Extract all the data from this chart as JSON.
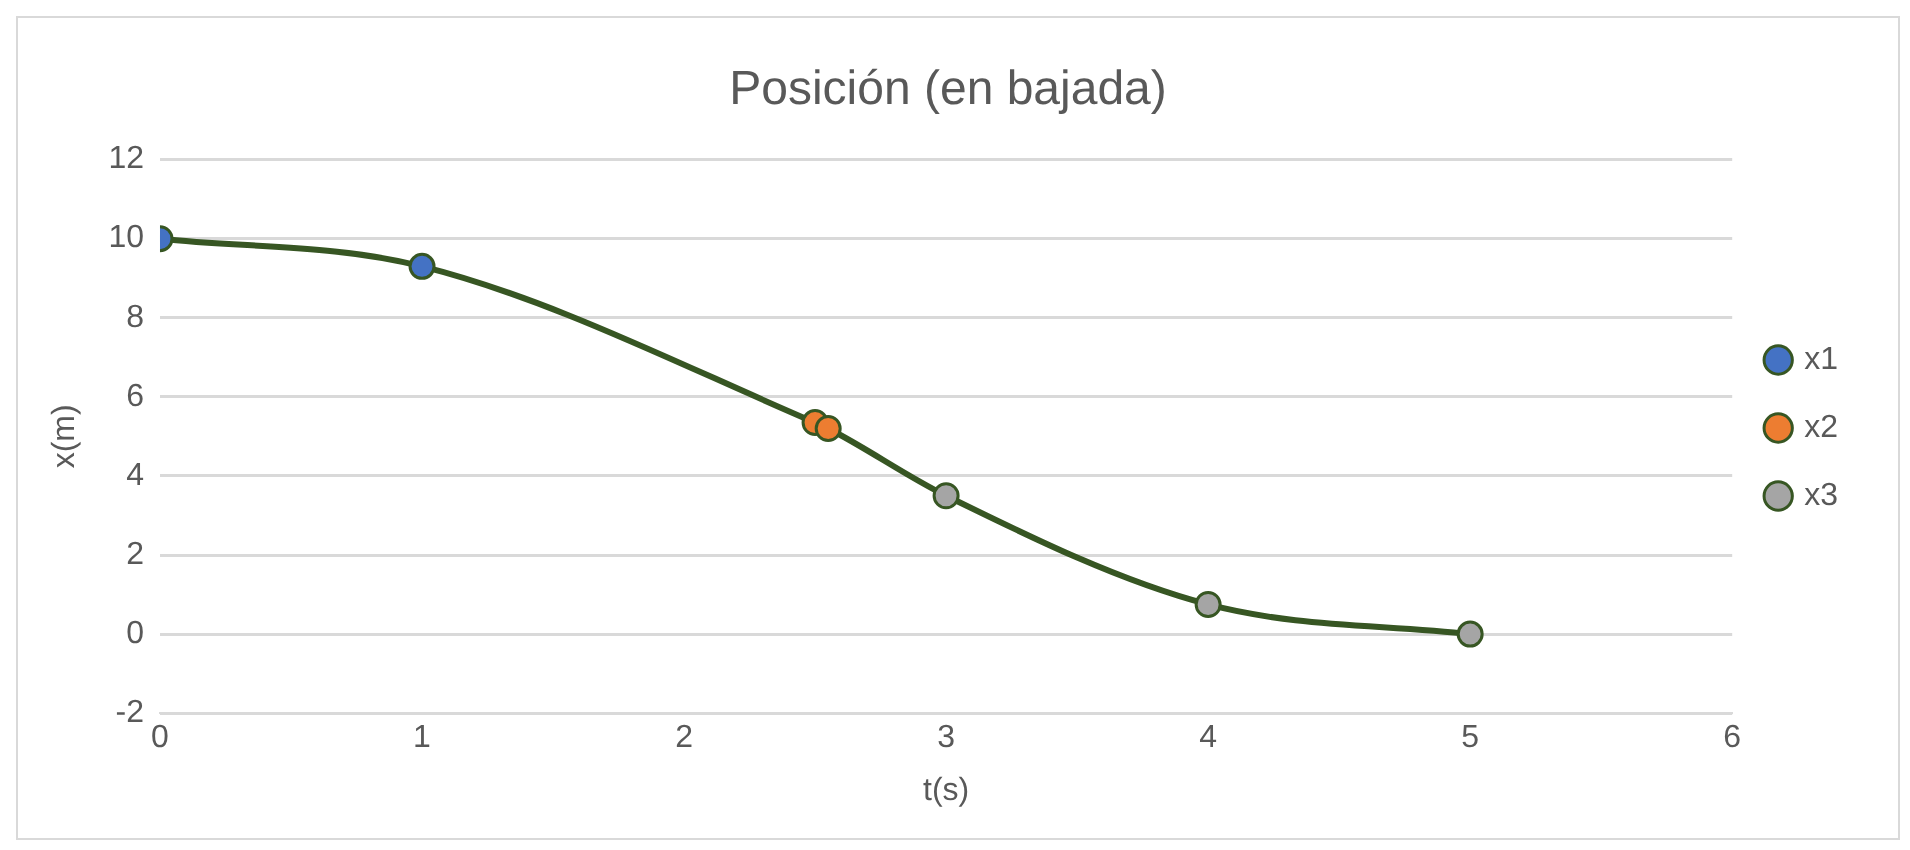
{
  "chart_data": {
    "type": "line",
    "title": "Posición (en bajada)",
    "xlabel": "t(s)",
    "ylabel": "x(m)",
    "series": [
      {
        "color": "#375623",
        "marker": "none",
        "x": [
          0,
          1,
          2.5,
          2.55,
          3,
          4,
          5
        ],
        "values": [
          10,
          9.3,
          5.35,
          5.2,
          3.5,
          0.75,
          0
        ]
      },
      {
        "type": "scatter",
        "name": "x1",
        "color": "#4472c4",
        "marker": "circle",
        "x": [
          0,
          1
        ],
        "values": [
          10,
          9.3
        ]
      },
      {
        "type": "scatter",
        "name": "x2",
        "color": "#ed7d31",
        "marker": "circle",
        "x": [
          2.5,
          2.55
        ],
        "values": [
          5.35,
          5.2
        ]
      },
      {
        "type": "scatter",
        "name": "x3",
        "color": "#a5a5a5",
        "marker": "circle",
        "x": [
          3,
          4,
          5
        ],
        "values": [
          3.5,
          0.75,
          0
        ]
      }
    ],
    "xlim": [
      0,
      6
    ],
    "xticks": [
      0,
      1,
      2,
      3,
      4,
      5,
      6
    ],
    "ylim": [
      -2,
      12
    ],
    "yticks": [
      -2,
      0,
      2,
      4,
      6,
      8,
      10,
      12
    ],
    "grid": "y",
    "legend": "right"
  }
}
